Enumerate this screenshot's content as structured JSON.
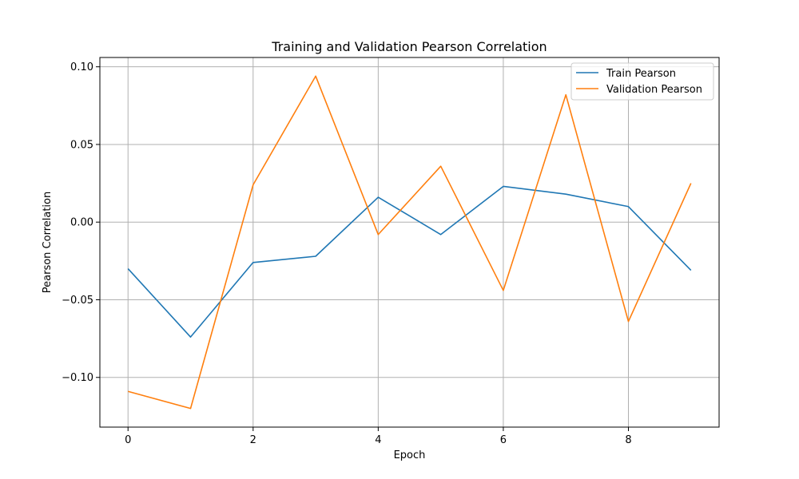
{
  "chart_data": {
    "type": "line",
    "title": "Training and Validation Pearson Correlation",
    "xlabel": "Epoch",
    "ylabel": "Pearson Correlation",
    "x": [
      0,
      1,
      2,
      3,
      4,
      5,
      6,
      7,
      8,
      9
    ],
    "xticks": [
      0,
      2,
      4,
      6,
      8
    ],
    "xtick_labels": [
      "0",
      "2",
      "4",
      "6",
      "8"
    ],
    "yticks": [
      -0.1,
      -0.05,
      0.0,
      0.05,
      0.1
    ],
    "ytick_labels": [
      "−0.10",
      "−0.05",
      "0.00",
      "0.05",
      "0.10"
    ],
    "xlim": [
      -0.45,
      9.45
    ],
    "ylim": [
      -0.132,
      0.106
    ],
    "grid": true,
    "legend_position": "top-right",
    "series": [
      {
        "name": "Train Pearson",
        "color": "#1f77b4",
        "values": [
          -0.03,
          -0.074,
          -0.026,
          -0.022,
          0.016,
          -0.008,
          0.023,
          0.018,
          0.01,
          -0.031
        ]
      },
      {
        "name": "Validation Pearson",
        "color": "#ff7f0e",
        "values": [
          -0.109,
          -0.12,
          0.024,
          0.094,
          -0.008,
          0.036,
          -0.044,
          0.082,
          -0.064,
          0.025
        ]
      }
    ]
  }
}
